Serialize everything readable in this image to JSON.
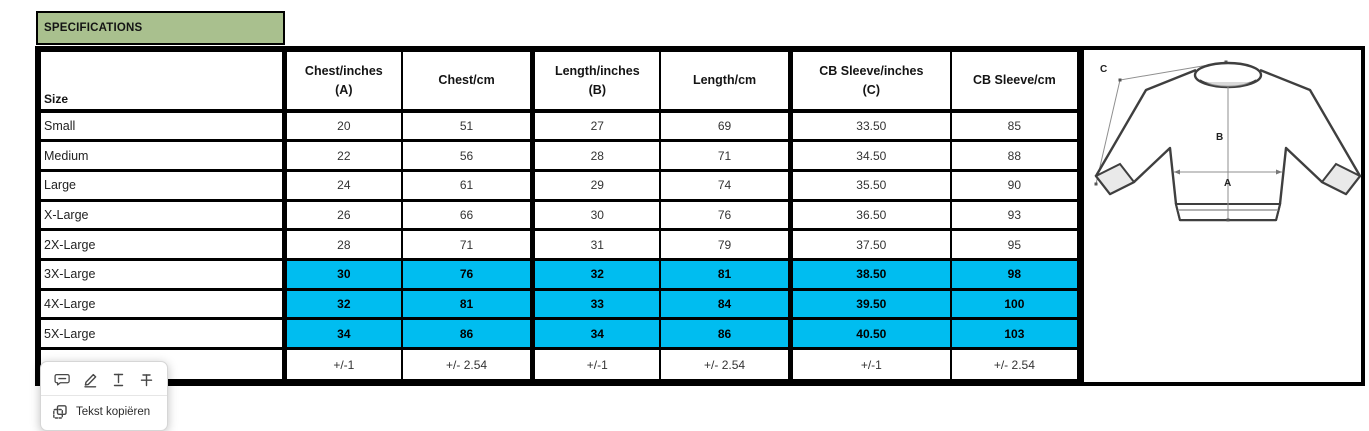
{
  "colors": {
    "header_green": "#a9c08e",
    "highlight_cyan": "#00bdf0",
    "grid_black": "#000000"
  },
  "spec_box": {
    "label": "SPECIFICATIONS"
  },
  "table": {
    "columns": [
      {
        "l1": "Size"
      },
      {
        "l1": "Chest/inches",
        "l2": "(A)"
      },
      {
        "l1": "Chest/cm"
      },
      {
        "l1": "Length/inches",
        "l2": "(B)"
      },
      {
        "l1": "Length/cm"
      },
      {
        "l1": "CB Sleeve/inches",
        "l2": "(C)"
      },
      {
        "l1": "CB Sleeve/cm"
      }
    ],
    "rows": [
      {
        "size": "Small",
        "values": [
          "20",
          "51",
          "27",
          "69",
          "33.50",
          "85"
        ],
        "highlight": false,
        "tolerance": false
      },
      {
        "size": "Medium",
        "values": [
          "22",
          "56",
          "28",
          "71",
          "34.50",
          "88"
        ],
        "highlight": false,
        "tolerance": false
      },
      {
        "size": "Large",
        "values": [
          "24",
          "61",
          "29",
          "74",
          "35.50",
          "90"
        ],
        "highlight": false,
        "tolerance": false
      },
      {
        "size": "X-Large",
        "values": [
          "26",
          "66",
          "30",
          "76",
          "36.50",
          "93"
        ],
        "highlight": false,
        "tolerance": false
      },
      {
        "size": "2X-Large",
        "values": [
          "28",
          "71",
          "31",
          "79",
          "37.50",
          "95"
        ],
        "highlight": false,
        "tolerance": false
      },
      {
        "size": "3X-Large",
        "values": [
          "30",
          "76",
          "32",
          "81",
          "38.50",
          "98"
        ],
        "highlight": true,
        "tolerance": false
      },
      {
        "size": "4X-Large",
        "values": [
          "32",
          "81",
          "33",
          "84",
          "39.50",
          "100"
        ],
        "highlight": true,
        "tolerance": false
      },
      {
        "size": "5X-Large",
        "values": [
          "34",
          "86",
          "34",
          "86",
          "40.50",
          "103"
        ],
        "highlight": true,
        "tolerance": false
      },
      {
        "size": "",
        "values": [
          "+/-1",
          "+/- 2.54",
          "+/-1",
          "+/- 2.54",
          "+/-1",
          "+/- 2.54"
        ],
        "highlight": false,
        "tolerance": true
      }
    ]
  },
  "diagram": {
    "markers": {
      "c": "C",
      "b": "B",
      "a": "A"
    }
  },
  "context_menu": {
    "icons": [
      "comment-icon",
      "pen-icon",
      "underline-text-icon",
      "strikethrough-text-icon",
      "copy-icon"
    ],
    "copy_label": "Tekst kopiëren"
  }
}
